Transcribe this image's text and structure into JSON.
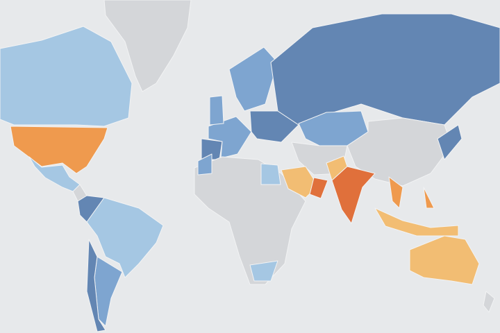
{
  "map": {
    "type": "choropleth",
    "palette": {
      "dark-blue": "#6386b3",
      "mid-blue": "#7ea5d0",
      "light-blue": "#a5c7e3",
      "no-data": "#d4d6d9",
      "dark-orange": "#e0703b",
      "orange": "#ef9a4e",
      "light-orange": "#f2bd73"
    }
  }
}
